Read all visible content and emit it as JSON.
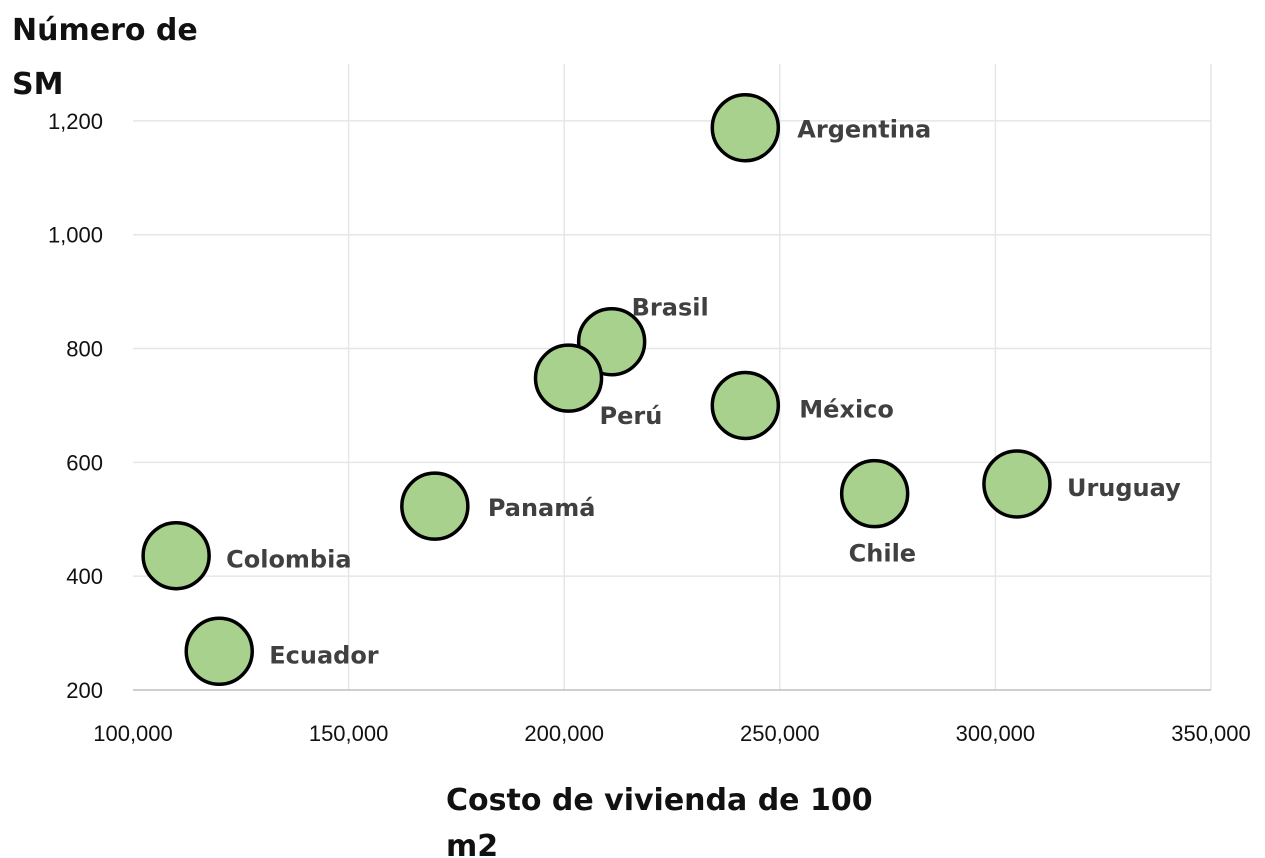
{
  "chart_data": {
    "type": "scatter",
    "title": "",
    "ylabel_lines": [
      "Número de",
      "SM"
    ],
    "xlabel_lines": [
      "Costo de vivienda de 100",
      "m2"
    ],
    "xlim": [
      100000,
      350000
    ],
    "ylim": [
      200,
      1300
    ],
    "x_ticks": [
      100000,
      150000,
      200000,
      250000,
      300000,
      350000
    ],
    "x_tick_labels": [
      "100,000",
      "150,000",
      "200,000",
      "250,000",
      "300,000",
      "350,000"
    ],
    "y_ticks": [
      200,
      400,
      600,
      800,
      1000,
      1200
    ],
    "y_tick_labels": [
      "200",
      "400",
      "600",
      "800",
      "1,000",
      "1,200"
    ],
    "grid": true,
    "legend": "none",
    "marker_color": "#a9d18e",
    "points": [
      {
        "label": "Argentina",
        "x": 242000,
        "y": 1188
      },
      {
        "label": "Brasil",
        "x": 211000,
        "y": 812
      },
      {
        "label": "Perú",
        "x": 201000,
        "y": 748
      },
      {
        "label": "México",
        "x": 242000,
        "y": 700
      },
      {
        "label": "Chile",
        "x": 272000,
        "y": 545
      },
      {
        "label": "Uruguay",
        "x": 305000,
        "y": 562
      },
      {
        "label": "Panamá",
        "x": 170000,
        "y": 523
      },
      {
        "label": "Colombia",
        "x": 110000,
        "y": 436
      },
      {
        "label": "Ecuador",
        "x": 120000,
        "y": 268
      }
    ]
  }
}
